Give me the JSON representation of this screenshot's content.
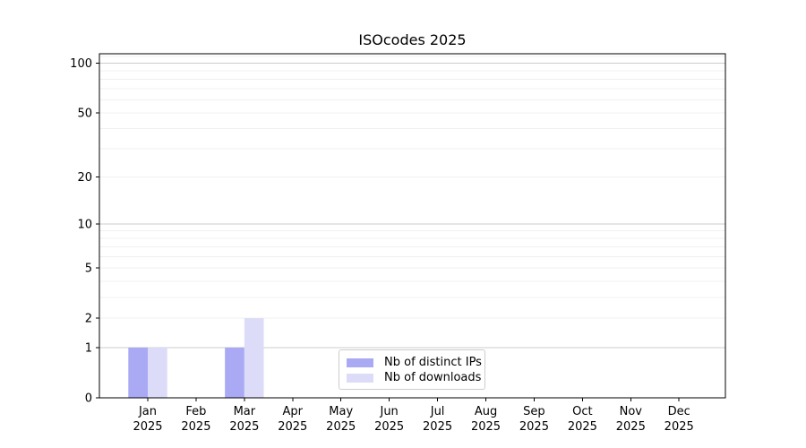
{
  "chart_data": {
    "type": "bar",
    "title": "ISOcodes 2025",
    "x_labels": [
      [
        "Jan",
        "2025"
      ],
      [
        "Feb",
        "2025"
      ],
      [
        "Mar",
        "2025"
      ],
      [
        "Apr",
        "2025"
      ],
      [
        "May",
        "2025"
      ],
      [
        "Jun",
        "2025"
      ],
      [
        "Jul",
        "2025"
      ],
      [
        "Aug",
        "2025"
      ],
      [
        "Sep",
        "2025"
      ],
      [
        "Oct",
        "2025"
      ],
      [
        "Nov",
        "2025"
      ],
      [
        "Dec",
        "2025"
      ]
    ],
    "series": [
      {
        "name": "Nb of distinct IPs",
        "color": "#a9a9f4",
        "values": [
          1,
          0,
          1,
          0,
          0,
          0,
          0,
          0,
          0,
          0,
          0,
          0
        ]
      },
      {
        "name": "Nb of downloads",
        "color": "#dcdcf9",
        "values": [
          1,
          0,
          2,
          0,
          0,
          0,
          0,
          0,
          0,
          0,
          0,
          0
        ]
      }
    ],
    "yscale": "log1p",
    "y_ticks": [
      0,
      1,
      2,
      5,
      10,
      20,
      50,
      100
    ],
    "ylim": [
      0,
      114
    ],
    "major_gridlines": [
      1,
      10,
      100
    ],
    "minor_gridlines": [
      2,
      3,
      4,
      5,
      6,
      7,
      8,
      9,
      20,
      30,
      40,
      50,
      60,
      70,
      80,
      90,
      110
    ],
    "colors": {
      "major_grid": "#cccccc",
      "minor_grid": "#f0f0f0",
      "spine": "#000000",
      "text": "#000000"
    },
    "legend_position": "lower center"
  }
}
